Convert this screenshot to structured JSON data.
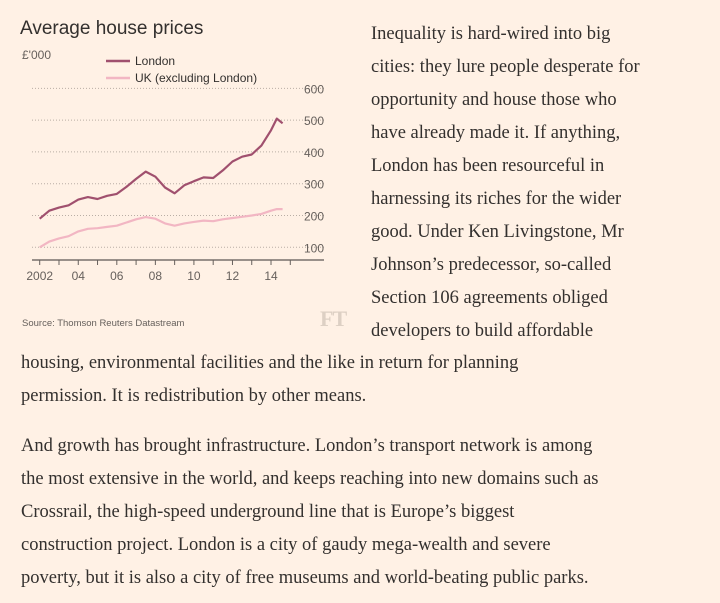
{
  "chart": {
    "title": "Average house prices",
    "unit": "£'000",
    "source": "Source: Thomson Reuters Datastream",
    "logo": "FT"
  },
  "chart_data": {
    "type": "line",
    "title": "Average house prices",
    "ylabel": "£'000",
    "ylim": [
      60,
      620
    ],
    "xlim": [
      2001.6,
      2015.4
    ],
    "y_ticks": [
      100,
      200,
      300,
      400,
      500,
      600
    ],
    "x_ticks": [
      2002,
      2004,
      2006,
      2008,
      2010,
      2012,
      2014
    ],
    "x_tick_labels": [
      "2002",
      "04",
      "06",
      "08",
      "10",
      "12",
      "14"
    ],
    "grid": true,
    "legend": "top-center",
    "colors": {
      "London": "#a0506e",
      "UK (excluding London)": "#f2b6c3"
    },
    "series": [
      {
        "name": "London",
        "x": [
          2002.0,
          2002.5,
          2003.0,
          2003.5,
          2004.0,
          2004.5,
          2005.0,
          2005.5,
          2006.0,
          2006.5,
          2007.0,
          2007.5,
          2008.0,
          2008.5,
          2009.0,
          2009.5,
          2010.0,
          2010.5,
          2011.0,
          2011.5,
          2012.0,
          2012.5,
          2013.0,
          2013.5,
          2014.0,
          2014.3,
          2014.6
        ],
        "y": [
          190,
          215,
          225,
          232,
          250,
          258,
          252,
          262,
          268,
          290,
          315,
          338,
          322,
          288,
          270,
          295,
          308,
          320,
          318,
          342,
          370,
          385,
          392,
          420,
          468,
          505,
          490
        ]
      },
      {
        "name": "UK (excluding London)",
        "x": [
          2002.0,
          2002.5,
          2003.0,
          2003.5,
          2004.0,
          2004.5,
          2005.0,
          2005.5,
          2006.0,
          2006.5,
          2007.0,
          2007.5,
          2008.0,
          2008.5,
          2009.0,
          2009.5,
          2010.0,
          2010.5,
          2011.0,
          2011.5,
          2012.0,
          2012.5,
          2013.0,
          2013.5,
          2014.0,
          2014.3,
          2014.6
        ],
        "y": [
          100,
          118,
          128,
          135,
          150,
          158,
          160,
          164,
          168,
          178,
          188,
          195,
          190,
          175,
          168,
          175,
          180,
          184,
          182,
          188,
          192,
          196,
          200,
          205,
          215,
          220,
          220
        ]
      }
    ]
  },
  "article": {
    "p1_lines": [
      "Inequality is hard-wired into big",
      "cities: they lure people desperate for",
      "opportunity and house those who",
      "have already made it. If anything,",
      "London has been resourceful in",
      "harnessing its riches for the wider",
      "good. Under Ken Livingstone, Mr",
      "Johnson’s predecessor, so-called",
      "Section 106 agreements obliged",
      "developers to build affordable"
    ],
    "p1_cont_lines": [
      "housing, environmental facilities and the like in return for planning",
      "permission. It is redistribution by other means."
    ],
    "p2_lines": [
      "And growth has brought infrastructure. London’s transport network is among",
      "the most extensive in the world, and keeps reaching into new domains such as",
      "Crossrail, the high-speed underground line that is Europe’s biggest",
      "construction project. London is a city of gaudy mega-wealth and severe",
      "poverty, but it is also a city of free museums and world-beating public parks."
    ]
  }
}
